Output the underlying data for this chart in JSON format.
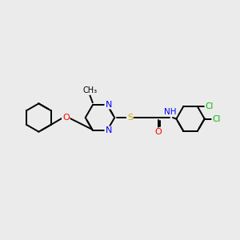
{
  "bg_color": "#ebebeb",
  "bond_color": "#000000",
  "atom_colors": {
    "N": "#0000ff",
    "O": "#ff0000",
    "S": "#ccaa00",
    "Cl": "#00bb00",
    "H": "#777777",
    "C": "#000000"
  },
  "figsize": [
    3.0,
    3.0
  ],
  "dpi": 100
}
